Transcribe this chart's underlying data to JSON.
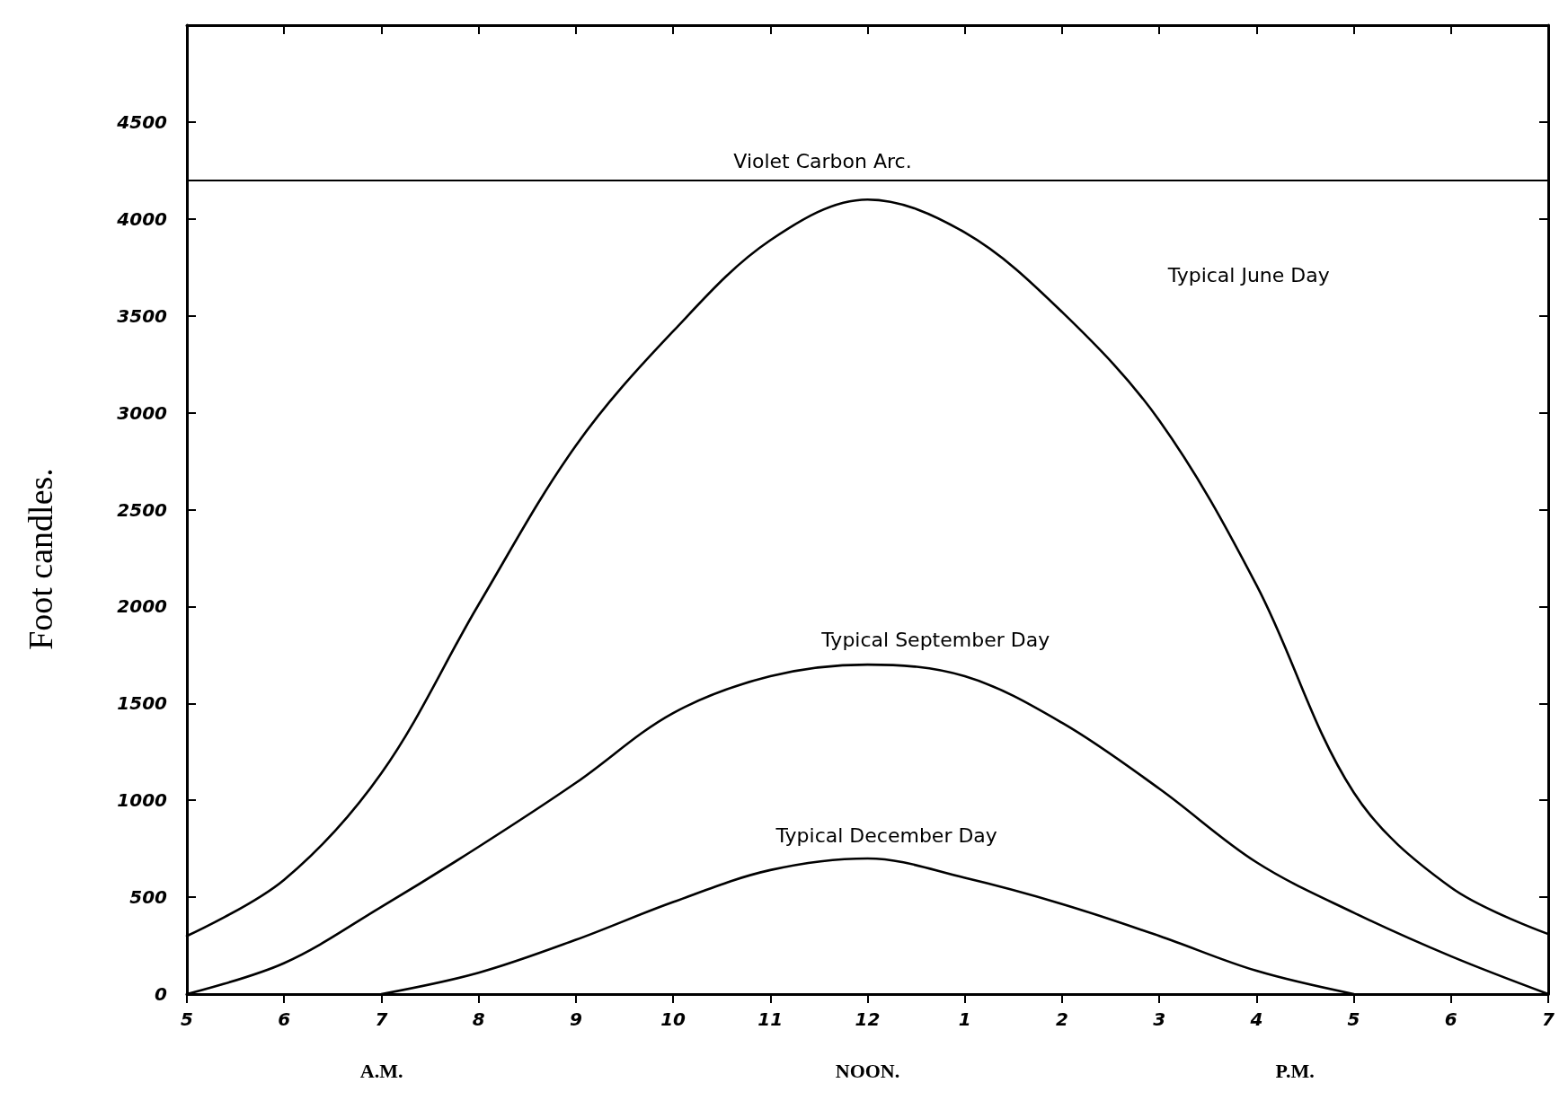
{
  "chart_data": {
    "type": "line",
    "ylabel": "Foot candles.",
    "categories": [
      "5",
      "6",
      "7",
      "8",
      "9",
      "10",
      "11",
      "12",
      "1",
      "2",
      "3",
      "4",
      "5",
      "6",
      "7"
    ],
    "ylim": [
      0,
      5000
    ],
    "yticks": [
      0,
      500,
      1000,
      1500,
      2000,
      2500,
      3000,
      3500,
      4000,
      4500
    ],
    "grid": false,
    "marker": "none",
    "line_style": "solid",
    "series": [
      {
        "color": "#000000",
        "values": [
          300,
          590,
          1140,
          2010,
          2830,
          3420,
          3890,
          4100,
          3930,
          3520,
          2960,
          2110,
          1040,
          550,
          310
        ]
      },
      {
        "color": "#000000",
        "values": [
          0,
          160,
          450,
          760,
          1090,
          1450,
          1640,
          1700,
          1640,
          1400,
          1060,
          680,
          420,
          195,
          0
        ]
      },
      {
        "color": "#000000",
        "values": [
          null,
          null,
          0,
          110,
          280,
          475,
          640,
          700,
          600,
          465,
          300,
          120,
          0,
          null,
          null
        ]
      }
    ],
    "ref_lines": [
      {
        "axis": "y",
        "value": 4200,
        "label": "Violet Carbon Arc.",
        "color": "#000000"
      }
    ],
    "annotations": [
      "Typical June Day",
      "Typical September Day",
      "Typical December Day",
      "A.M.",
      "NOON.",
      "P.M."
    ]
  }
}
